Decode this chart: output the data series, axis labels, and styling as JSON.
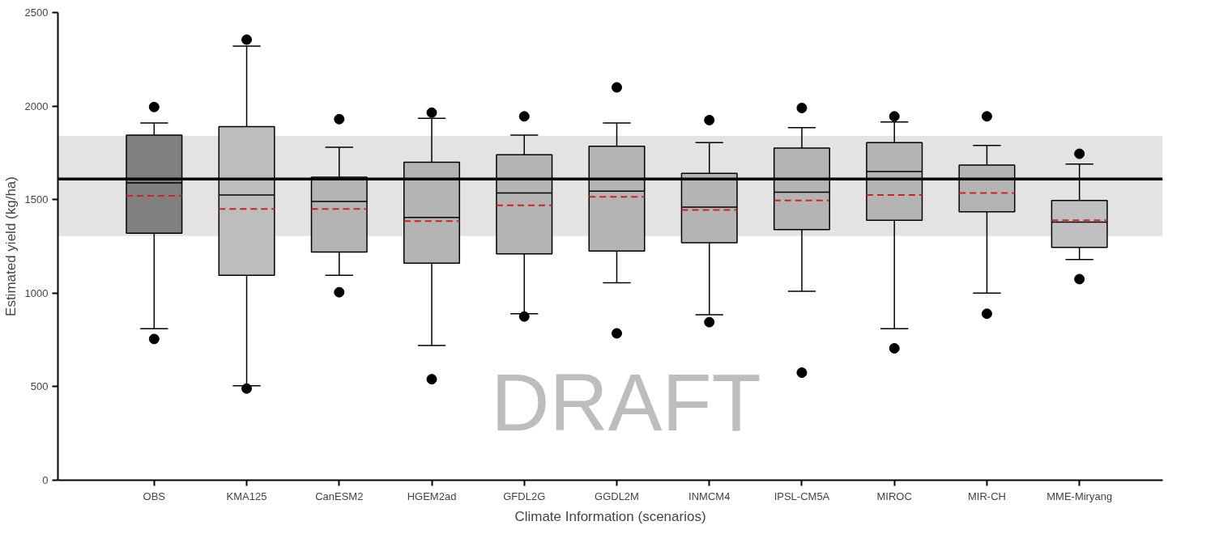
{
  "chart_data": {
    "type": "box",
    "xlabel": "Climate Information (scenarios)",
    "ylabel": "Estimated yield (kg/ha)",
    "categories": [
      "OBS",
      "KMA125",
      "CanESM2",
      "HGEM2ad",
      "GFDL2G",
      "GGDL2M",
      "INMCM4",
      "IPSL-CM5A",
      "MIROC",
      "MIR-CH",
      "MME-Miryang"
    ],
    "colors": [
      "#808080",
      "#bdbdbd",
      "#b4b4b4",
      "#b4b4b4",
      "#b4b4b4",
      "#b4b4b4",
      "#b4b4b4",
      "#b4b4b4",
      "#b4b4b4",
      "#b4b4b4",
      "#c0c0c0"
    ],
    "boxes": [
      {
        "low": 810,
        "q1": 1320,
        "median": 1590,
        "q3": 1845,
        "high": 1910,
        "mean": 1520,
        "outliers": [
          755,
          1995
        ]
      },
      {
        "low": 505,
        "q1": 1095,
        "median": 1525,
        "q3": 1890,
        "high": 2320,
        "mean": 1450,
        "outliers": [
          490,
          2355
        ]
      },
      {
        "low": 1095,
        "q1": 1220,
        "median": 1490,
        "q3": 1620,
        "high": 1780,
        "mean": 1450,
        "outliers": [
          1005,
          1930
        ]
      },
      {
        "low": 720,
        "q1": 1160,
        "median": 1405,
        "q3": 1700,
        "high": 1935,
        "mean": 1385,
        "outliers": [
          540,
          1965
        ]
      },
      {
        "low": 890,
        "q1": 1210,
        "median": 1535,
        "q3": 1740,
        "high": 1845,
        "mean": 1470,
        "outliers": [
          875,
          1945
        ]
      },
      {
        "low": 1055,
        "q1": 1225,
        "median": 1545,
        "q3": 1785,
        "high": 1910,
        "mean": 1515,
        "outliers": [
          785,
          2100
        ]
      },
      {
        "low": 885,
        "q1": 1270,
        "median": 1460,
        "q3": 1640,
        "high": 1805,
        "mean": 1445,
        "outliers": [
          845,
          1925
        ]
      },
      {
        "low": 1010,
        "q1": 1340,
        "median": 1540,
        "q3": 1775,
        "high": 1885,
        "mean": 1495,
        "outliers": [
          575,
          1990
        ]
      },
      {
        "low": 810,
        "q1": 1390,
        "median": 1650,
        "q3": 1805,
        "high": 1915,
        "mean": 1525,
        "outliers": [
          705,
          1945
        ]
      },
      {
        "low": 1000,
        "q1": 1435,
        "median": 1610,
        "q3": 1685,
        "high": 1790,
        "mean": 1535,
        "outliers": [
          890,
          1945
        ]
      },
      {
        "low": 1180,
        "q1": 1245,
        "median": 1380,
        "q3": 1495,
        "high": 1690,
        "mean": 1390,
        "outliers": [
          1075,
          1745
        ]
      }
    ],
    "ylim": [
      0,
      2500
    ],
    "yticks": [
      0,
      500,
      1000,
      1500,
      2000,
      2500
    ],
    "grid": false,
    "ref_lines": [
      {
        "axis": "y",
        "value": 1610,
        "color": "#000000"
      }
    ],
    "bands": [
      {
        "axis": "y",
        "from": 1305,
        "to": 1840,
        "color": "#e3e3e3"
      }
    ],
    "annotations": [
      "DRAFT"
    ]
  }
}
